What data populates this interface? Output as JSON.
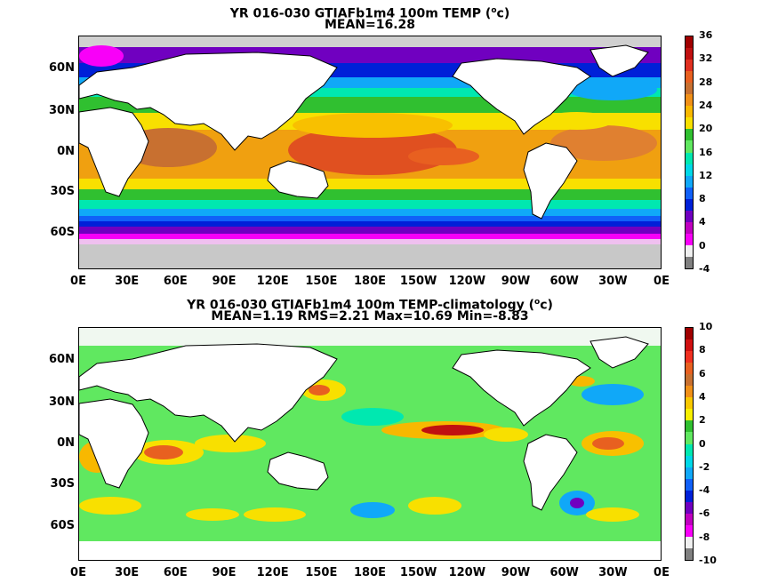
{
  "panels": [
    {
      "title_prefix": "YR 016-030 GTIAFb1m4 100m TEMP (",
      "title_unit_sup": "o",
      "title_unit": "c)",
      "subtitle": "MEAN=16.28",
      "colorbar_ticks": [
        "36",
        "32",
        "28",
        "24",
        "20",
        "16",
        "12",
        "8",
        "4",
        "0",
        "-4"
      ],
      "colorbar_colors": [
        "#a00000",
        "#c01010",
        "#e03020",
        "#e86020",
        "#c87030",
        "#f09018",
        "#f8b800",
        "#f8e000",
        "#30c030",
        "#60e860",
        "#00e8b0",
        "#00d8e8",
        "#10a8f8",
        "#1060f8",
        "#0020d8",
        "#7000c0",
        "#c000c0",
        "#f800f8",
        "#f0f0f0",
        "#808080"
      ]
    },
    {
      "title_prefix": "YR 016-030 GTIAFb1m4 100m TEMP-climatology (",
      "title_unit_sup": "o",
      "title_unit": "c)",
      "subtitle": "MEAN=1.19   RMS=2.21   Max=10.69   Min=-8.83",
      "colorbar_ticks": [
        "10",
        "8",
        "6",
        "4",
        "2",
        "0",
        "-2",
        "-4",
        "-6",
        "-8",
        "-10"
      ],
      "colorbar_colors": [
        "#a00000",
        "#d01010",
        "#f03020",
        "#e86020",
        "#c87030",
        "#f09018",
        "#f8c800",
        "#f8f000",
        "#30c030",
        "#60e860",
        "#00e8b0",
        "#00d8e8",
        "#10a8f8",
        "#1060f8",
        "#0020d8",
        "#7000c0",
        "#c000c0",
        "#f800f8",
        "#f0f0f0",
        "#808080"
      ]
    }
  ],
  "lat_labels": [
    "60N",
    "30N",
    "0N",
    "30S",
    "60S"
  ],
  "lon_labels": [
    "0E",
    "30E",
    "60E",
    "90E",
    "120E",
    "150E",
    "180E",
    "150W",
    "120W",
    "90W",
    "60W",
    "30W",
    "0E"
  ]
}
